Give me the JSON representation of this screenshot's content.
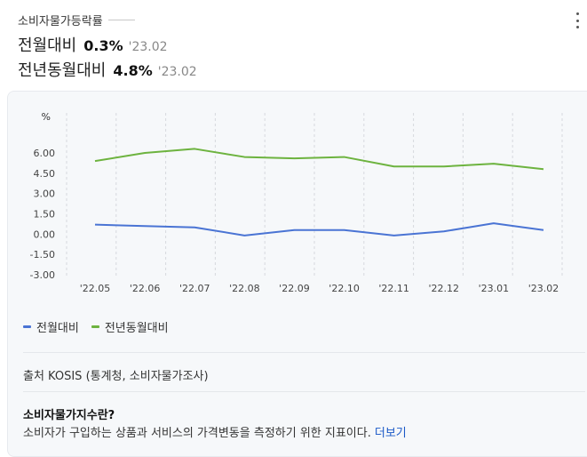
{
  "header": {
    "title": "소비자물가등락률"
  },
  "stats": {
    "mom": {
      "label": "전월대비",
      "value": "0.3%",
      "date": "'23.02"
    },
    "yoy": {
      "label": "전년동월대비",
      "value": "4.8%",
      "date": "'23.02"
    }
  },
  "colors": {
    "mom": "#4a74d4",
    "yoy": "#6db33f"
  },
  "chart_data": {
    "type": "line",
    "ylabel": "%",
    "categories": [
      "'22.05",
      "'22.06",
      "'22.07",
      "'22.08",
      "'22.09",
      "'22.10",
      "'22.11",
      "'22.12",
      "'23.01",
      "'23.02"
    ],
    "yticks": [
      "6.00",
      "4.50",
      "3.00",
      "1.50",
      "0.00",
      "-1.50",
      "-3.00"
    ],
    "ylim": [
      -3.0,
      6.0
    ],
    "grid": "vertical-dashed",
    "legend_position": "bottom-left",
    "series": [
      {
        "name": "전월대비",
        "values": [
          0.7,
          0.6,
          0.5,
          -0.1,
          0.3,
          0.3,
          -0.1,
          0.2,
          0.8,
          0.3
        ]
      },
      {
        "name": "전년동월대비",
        "values": [
          5.4,
          6.0,
          6.3,
          5.7,
          5.6,
          5.7,
          5.0,
          5.0,
          5.2,
          4.8
        ]
      }
    ]
  },
  "footer": {
    "source": "출처 KOSIS (통계청, 소비자물가조사)",
    "definition_title": "소비자물가지수란?",
    "definition_text": "소비자가 구입하는 상품과 서비스의 가격변동을 측정하기 위한 지표이다.",
    "more_link": "더보기"
  }
}
